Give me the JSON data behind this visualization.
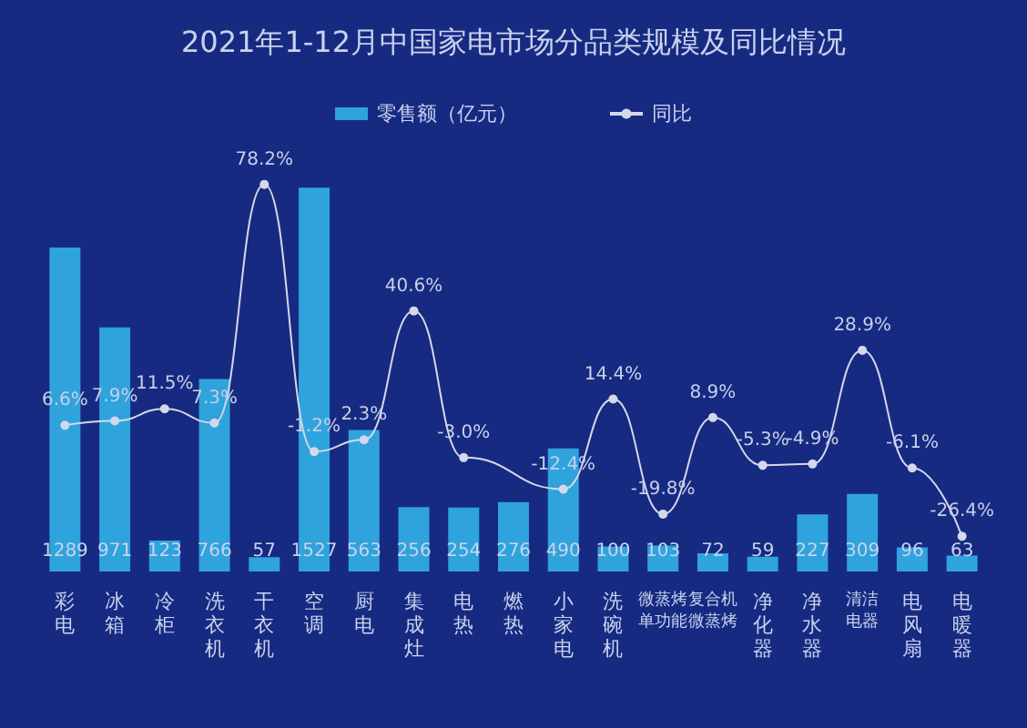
{
  "chart_data": {
    "type": "bar",
    "title": "2021年1-12月中国家电市场分品类规模及同比情况",
    "categories": [
      "彩电",
      "冰箱",
      "冷柜",
      "洗衣机",
      "干衣机",
      "空调",
      "厨电",
      "集成灶",
      "电热",
      "燃热",
      "小家电",
      "洗碗机",
      "微蒸烤单功能",
      "复合机微蒸烤",
      "净化器",
      "净水器",
      "清洁电器",
      "电风扇",
      "电暖器"
    ],
    "series": [
      {
        "name": "零售额（亿元）",
        "color": "#2fa3dc",
        "values": [
          1289,
          971,
          123,
          766,
          57,
          1527,
          563,
          256,
          254,
          276,
          490,
          100,
          103,
          72,
          59,
          227,
          309,
          96,
          63
        ],
        "value_labels": [
          "1289",
          "971",
          "123",
          "766",
          "57",
          "1527",
          "563",
          "256",
          "254",
          "276",
          "490",
          "100",
          "103",
          "72",
          "59",
          "227",
          "309",
          "96",
          "63"
        ]
      },
      {
        "name": "同比",
        "type": "line",
        "axis": "y2",
        "color": "#d4d8ea",
        "values": [
          6.6,
          7.9,
          11.5,
          7.3,
          78.2,
          -1.2,
          2.3,
          40.6,
          -3.0,
          null,
          -12.4,
          14.4,
          -19.8,
          8.9,
          -5.3,
          -4.9,
          28.9,
          -6.1,
          -26.4
        ],
        "value_labels": [
          "6.6%",
          "7.9%",
          "11.5%",
          "7.3%",
          "78.2%",
          "-1.2%",
          "2.3%",
          "40.6%",
          "-3.0%",
          null,
          "-12.4%",
          "14.4%",
          "-19.8%",
          "8.9%",
          "-5.3%",
          "-4.9%",
          "28.9%",
          "-6.1%",
          "-26.4%"
        ]
      }
    ],
    "legend": "top",
    "marker": "circle",
    "grid": false
  }
}
